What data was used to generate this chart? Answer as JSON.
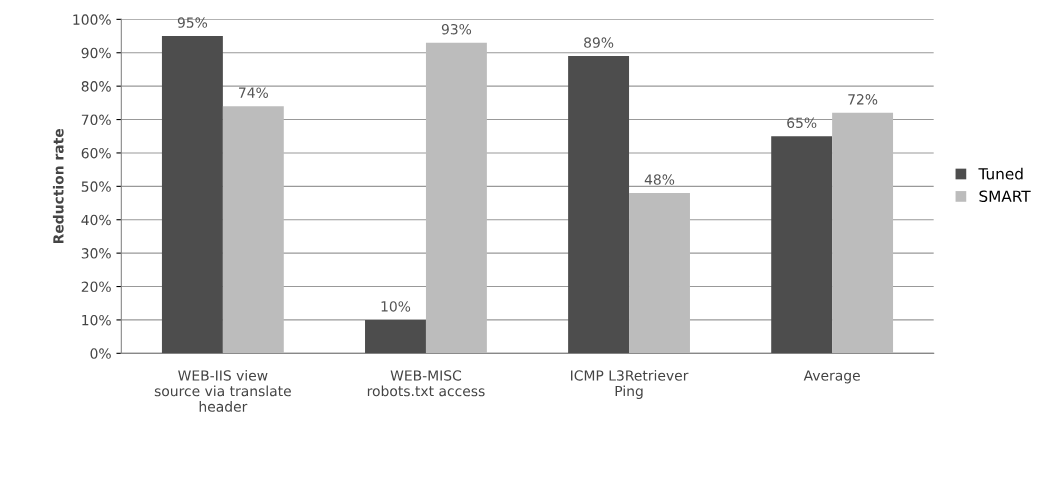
{
  "chart_data": {
    "type": "bar",
    "ylabel": "Reduction rate",
    "categories": [
      "WEB-IIS view\nsource via translate\nheader",
      "WEB-MISC\nrobots.txt access",
      "ICMP L3Retriever\nPing",
      "Average"
    ],
    "series": [
      {
        "name": "Tuned",
        "color": "#4d4d4d",
        "values": [
          95,
          10,
          89,
          65
        ],
        "value_labels": [
          "95%",
          "10%",
          "89%",
          "65%"
        ]
      },
      {
        "name": "SMART",
        "color": "#bcbcbc",
        "values": [
          74,
          93,
          48,
          72
        ],
        "value_labels": [
          "74%",
          "93%",
          "48%",
          "72%"
        ]
      }
    ],
    "ylim": [
      0,
      100
    ],
    "yticks": [
      {
        "value": 0,
        "label": "0%"
      },
      {
        "value": 10,
        "label": "10%"
      },
      {
        "value": 20,
        "label": "20%"
      },
      {
        "value": 30,
        "label": "30%"
      },
      {
        "value": 40,
        "label": "40%"
      },
      {
        "value": 50,
        "label": "50%"
      },
      {
        "value": 60,
        "label": "60%"
      },
      {
        "value": 70,
        "label": "70%"
      },
      {
        "value": 80,
        "label": "80%"
      },
      {
        "value": 90,
        "label": "90%"
      },
      {
        "value": 100,
        "label": "100%"
      }
    ],
    "grid": "y",
    "legend": "right"
  }
}
